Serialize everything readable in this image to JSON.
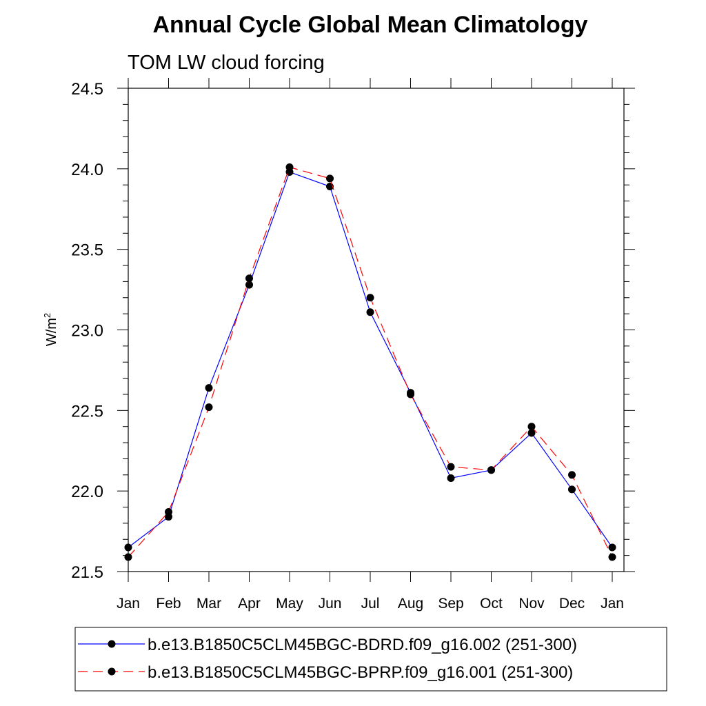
{
  "chart_data": {
    "type": "line",
    "title": "Annual Cycle Global Mean Climatology",
    "subtitle": "TOM LW cloud forcing",
    "ylabel_base": "W/m",
    "ylabel_sup": "2",
    "xlabel": "",
    "categories": [
      "Jan",
      "Feb",
      "Mar",
      "Apr",
      "May",
      "Jun",
      "Jul",
      "Aug",
      "Sep",
      "Oct",
      "Nov",
      "Dec",
      "Jan"
    ],
    "ylim": [
      21.5,
      24.5
    ],
    "yticks": [
      "21.5",
      "22.0",
      "22.5",
      "23.0",
      "23.5",
      "24.0",
      "24.5"
    ],
    "grid": false,
    "legend_position": "bottom",
    "series": [
      {
        "name": "b.e13.B1850C5CLM45BGC-BDRD.f09_g16.002 (251-300)",
        "color": "#0000ff",
        "dash": "solid",
        "values": [
          21.65,
          21.84,
          22.64,
          23.28,
          23.98,
          23.89,
          23.11,
          22.61,
          22.08,
          22.13,
          22.36,
          22.01,
          21.65
        ]
      },
      {
        "name": "b.e13.B1850C5CLM45BGC-BPRP.f09_g16.001 (251-300)",
        "color": "#ff0000",
        "dash": "dashed",
        "values": [
          21.59,
          21.87,
          22.52,
          23.32,
          24.01,
          23.94,
          23.2,
          22.6,
          22.15,
          22.13,
          22.4,
          22.1,
          21.59
        ]
      }
    ]
  }
}
